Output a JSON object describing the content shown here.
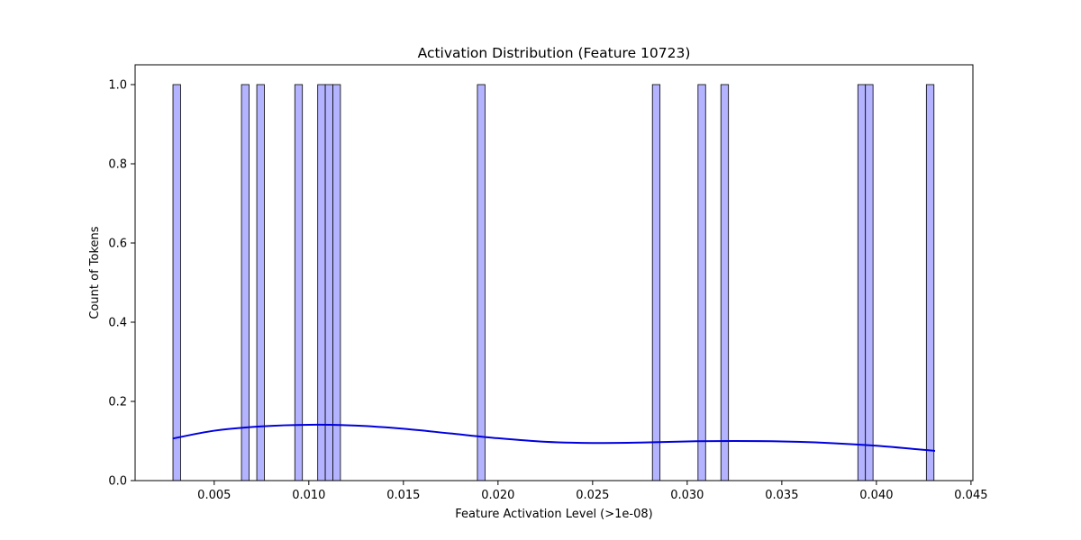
{
  "chart_data": {
    "type": "bar",
    "title": "Activation Distribution (Feature 10723)",
    "xlabel": "Feature Activation Level (>1e-08)",
    "ylabel": "Count of Tokens",
    "xlim": [
      0.00082,
      0.0451
    ],
    "ylim": [
      0,
      1.05
    ],
    "bin_width": 0.000402,
    "xticks": [
      {
        "value": 0.005,
        "label": "0.005"
      },
      {
        "value": 0.01,
        "label": "0.010"
      },
      {
        "value": 0.015,
        "label": "0.015"
      },
      {
        "value": 0.02,
        "label": "0.020"
      },
      {
        "value": 0.025,
        "label": "0.025"
      },
      {
        "value": 0.03,
        "label": "0.030"
      },
      {
        "value": 0.035,
        "label": "0.035"
      },
      {
        "value": 0.04,
        "label": "0.040"
      },
      {
        "value": 0.045,
        "label": "0.045"
      }
    ],
    "yticks": [
      {
        "value": 0.0,
        "label": "0.0"
      },
      {
        "value": 0.2,
        "label": "0.2"
      },
      {
        "value": 0.4,
        "label": "0.4"
      },
      {
        "value": 0.6,
        "label": "0.6"
      },
      {
        "value": 0.8,
        "label": "0.8"
      },
      {
        "value": 1.0,
        "label": "1.0"
      }
    ],
    "bins": [
      {
        "x_start": 0.00282,
        "count": 1
      },
      {
        "x_start": 0.00644,
        "count": 1
      },
      {
        "x_start": 0.00725,
        "count": 1
      },
      {
        "x_start": 0.00926,
        "count": 1
      },
      {
        "x_start": 0.01047,
        "count": 1
      },
      {
        "x_start": 0.01087,
        "count": 1
      },
      {
        "x_start": 0.01127,
        "count": 1
      },
      {
        "x_start": 0.01891,
        "count": 1
      },
      {
        "x_start": 0.02816,
        "count": 1
      },
      {
        "x_start": 0.03057,
        "count": 1
      },
      {
        "x_start": 0.03178,
        "count": 1
      },
      {
        "x_start": 0.03902,
        "count": 1
      },
      {
        "x_start": 0.03942,
        "count": 1
      },
      {
        "x_start": 0.04264,
        "count": 1
      }
    ],
    "kde": {
      "x": [
        0.0028,
        0.005,
        0.0075,
        0.01,
        0.0125,
        0.015,
        0.0175,
        0.02,
        0.0225,
        0.025,
        0.0275,
        0.03,
        0.0325,
        0.035,
        0.0375,
        0.04,
        0.0431
      ],
      "y": [
        0.106,
        0.126,
        0.137,
        0.141,
        0.139,
        0.131,
        0.119,
        0.107,
        0.098,
        0.095,
        0.096,
        0.099,
        0.1,
        0.099,
        0.095,
        0.088,
        0.075
      ]
    },
    "colors": {
      "bar_fill": "#b3b3ff",
      "bar_edge": "#000000",
      "kde_line": "#0000dd"
    },
    "grid": false,
    "legend": "none"
  }
}
